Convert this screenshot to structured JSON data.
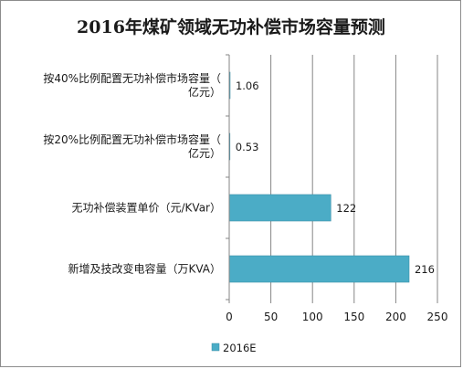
{
  "chart_data": {
    "type": "bar",
    "orientation": "horizontal",
    "title": "2016年煤矿领域无功补偿市场容量预测",
    "categories": [
      "按40%比例配置无功补偿市场容量（亿元）",
      "按20%比例配置无功补偿市场容量（亿元）",
      "无功补偿装置单价（元/KVar）",
      "新增及技改变电容量（万KVA）"
    ],
    "series": [
      {
        "name": "2016E",
        "values": [
          1.06,
          0.53,
          122,
          216
        ],
        "color": "#4bacc6"
      }
    ],
    "data_labels": [
      "1.06",
      "0.53",
      "122",
      "216"
    ],
    "xlim": [
      0,
      250
    ],
    "xticks": [
      0,
      50,
      100,
      150,
      200,
      250
    ],
    "grid": true,
    "legend_position": "bottom"
  }
}
